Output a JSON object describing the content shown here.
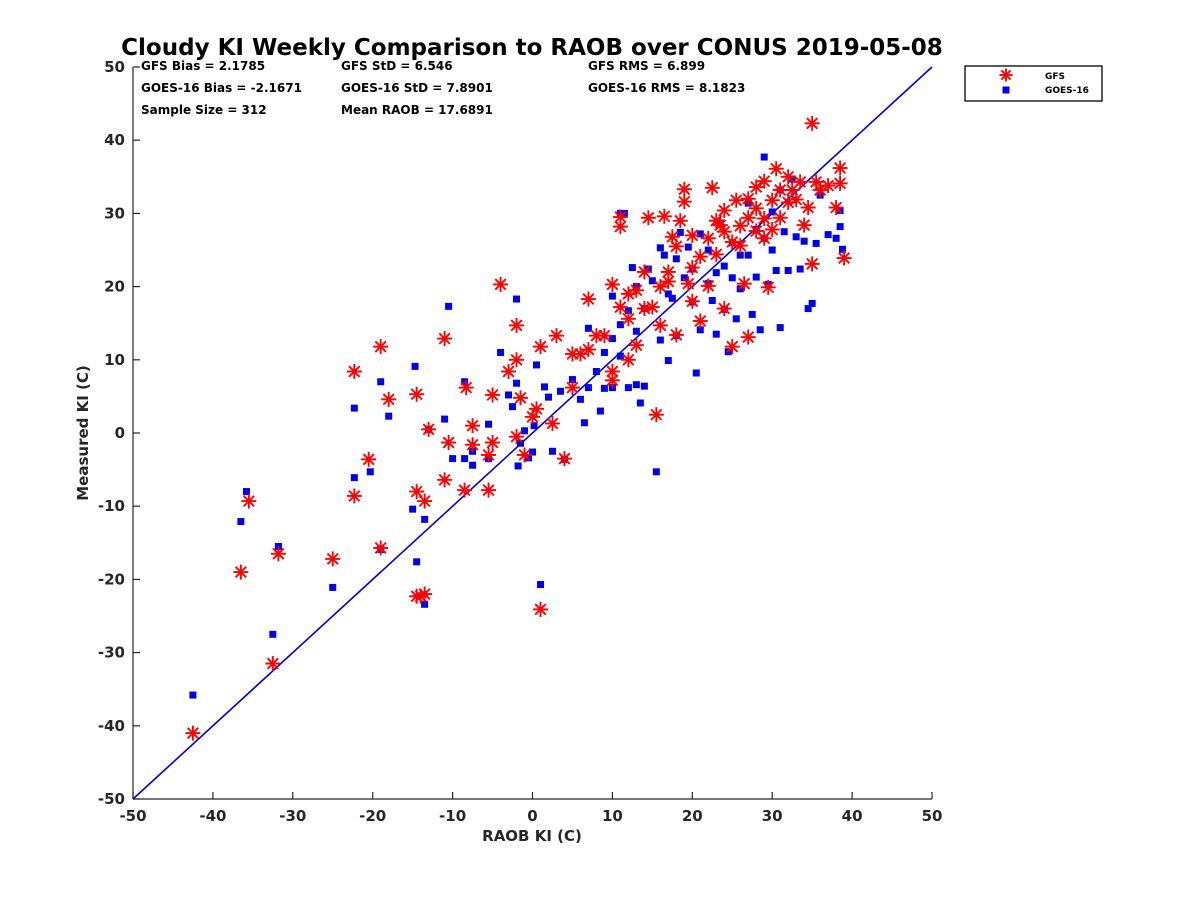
{
  "chart_data": {
    "type": "scatter",
    "title": "Cloudy KI Weekly Comparison to RAOB over CONUS 2019-05-08",
    "xlabel": "RAOB KI (C)",
    "ylabel": "Measured KI (C)",
    "xlim": [
      -50,
      50
    ],
    "ylim": [
      -50,
      50
    ],
    "x_ticks": [
      "-50",
      "-40",
      "-30",
      "-20",
      "-10",
      "0",
      "10",
      "20",
      "30",
      "40",
      "50"
    ],
    "y_ticks": [
      "-50",
      "-40",
      "-30",
      "-20",
      "-10",
      "0",
      "10",
      "20",
      "30",
      "40",
      "50"
    ],
    "x_tick_values": [
      -50,
      -40,
      -30,
      -20,
      -10,
      0,
      10,
      20,
      30,
      40,
      50
    ],
    "y_tick_values": [
      -50,
      -40,
      -30,
      -20,
      -10,
      0,
      10,
      20,
      30,
      40,
      50
    ],
    "grid": false,
    "legend_position": "top-right, outside plot area",
    "one_to_one_line": {
      "from": [
        -50,
        -50
      ],
      "to": [
        50,
        50
      ],
      "color": "#0000dd"
    },
    "stats": [
      [
        "GFS Bias = 2.1785",
        "GFS StD = 6.546",
        "GFS RMS = 6.899"
      ],
      [
        "GOES-16 Bias = -2.1671",
        "GOES-16 StD = 7.8901",
        "GOES-16 RMS = 8.1823"
      ],
      [
        "Sample Size = 312",
        "Mean RAOB = 17.6891",
        ""
      ]
    ],
    "series": [
      {
        "name": "GFS",
        "marker": "asterisk",
        "color": "#ff0000",
        "points": [
          [
            -42.5,
            -41
          ],
          [
            -36.5,
            -19
          ],
          [
            -35.5,
            -9.3
          ],
          [
            -31.8,
            -16.5
          ],
          [
            -32.5,
            -31.5
          ],
          [
            -25,
            -17.2
          ],
          [
            -22.3,
            8.4
          ],
          [
            -22.3,
            -8.6
          ],
          [
            -20.5,
            -3.6
          ],
          [
            -19,
            11.8
          ],
          [
            -19,
            -15.7
          ],
          [
            -18,
            4.6
          ],
          [
            -14.5,
            -8
          ],
          [
            -14.5,
            5.3
          ],
          [
            -14.5,
            -22.3
          ],
          [
            -14,
            -22.3
          ],
          [
            -13.5,
            -9.3
          ],
          [
            -13.5,
            -22
          ],
          [
            -13,
            0.5
          ],
          [
            -11,
            12.9
          ],
          [
            -11,
            -6.4
          ],
          [
            -10.5,
            -1.3
          ],
          [
            -8.5,
            -7.8
          ],
          [
            -8.3,
            6.2
          ],
          [
            -7.5,
            -1.6
          ],
          [
            -7.5,
            1
          ],
          [
            -5.5,
            -7.8
          ],
          [
            -5.5,
            -3
          ],
          [
            -5,
            -1.3
          ],
          [
            -5,
            5.2
          ],
          [
            -4,
            20.3
          ],
          [
            -3,
            8.4
          ],
          [
            -2,
            14.7
          ],
          [
            -2,
            10
          ],
          [
            -2,
            -0.5
          ],
          [
            -1.5,
            4.8
          ],
          [
            -1,
            -3
          ],
          [
            0,
            2.2
          ],
          [
            0.5,
            3.3
          ],
          [
            1,
            11.8
          ],
          [
            1,
            -24.1
          ],
          [
            2.5,
            1.3
          ],
          [
            3,
            13.3
          ],
          [
            4,
            -3.5
          ],
          [
            5,
            6.2
          ],
          [
            5,
            10.8
          ],
          [
            6,
            10.8
          ],
          [
            7,
            18.3
          ],
          [
            7,
            11.4
          ],
          [
            8,
            13.3
          ],
          [
            9,
            13.3
          ],
          [
            10,
            20.3
          ],
          [
            10,
            8.4
          ],
          [
            10,
            7.2
          ],
          [
            11,
            17.2
          ],
          [
            11,
            28.2
          ],
          [
            11,
            29.5
          ],
          [
            12,
            19
          ],
          [
            12,
            15.6
          ],
          [
            12,
            10
          ],
          [
            13,
            19.5
          ],
          [
            13,
            12
          ],
          [
            14,
            22
          ],
          [
            14,
            17
          ],
          [
            14.5,
            29.4
          ],
          [
            15,
            17.2
          ],
          [
            15.5,
            2.5
          ],
          [
            16,
            20
          ],
          [
            16,
            14.7
          ],
          [
            16.5,
            29.6
          ],
          [
            17,
            22
          ],
          [
            17,
            20.7
          ],
          [
            17.5,
            26.8
          ],
          [
            18,
            25.5
          ],
          [
            18,
            13.4
          ],
          [
            18.5,
            29
          ],
          [
            19,
            33.3
          ],
          [
            19,
            31.6
          ],
          [
            19.5,
            20.4
          ],
          [
            20,
            27
          ],
          [
            20,
            22.6
          ],
          [
            20,
            18
          ],
          [
            21,
            15.3
          ],
          [
            21,
            24.1
          ],
          [
            22,
            26.6
          ],
          [
            22,
            20.1
          ],
          [
            22.5,
            33.5
          ],
          [
            23,
            29
          ],
          [
            23,
            24.4
          ],
          [
            23.5,
            28.4
          ],
          [
            24,
            30.4
          ],
          [
            24,
            27.5
          ],
          [
            24,
            17
          ],
          [
            25,
            11.8
          ],
          [
            25,
            26.1
          ],
          [
            25.5,
            31.8
          ],
          [
            26,
            28.3
          ],
          [
            26,
            25.6
          ],
          [
            26.5,
            20.4
          ],
          [
            27,
            13.1
          ],
          [
            27,
            32
          ],
          [
            27,
            29.4
          ],
          [
            28,
            33.6
          ],
          [
            28,
            27.6
          ],
          [
            28,
            30.7
          ],
          [
            29,
            34.4
          ],
          [
            29,
            29.3
          ],
          [
            29,
            26.6
          ],
          [
            29.5,
            19.9
          ],
          [
            30,
            31.8
          ],
          [
            30,
            27.8
          ],
          [
            30.5,
            36.1
          ],
          [
            31,
            33.2
          ],
          [
            31,
            29.4
          ],
          [
            32,
            35
          ],
          [
            32,
            31.5
          ],
          [
            32.5,
            33.2
          ],
          [
            33,
            31.9
          ],
          [
            33.5,
            34.3
          ],
          [
            34,
            28.4
          ],
          [
            34.5,
            30.8
          ],
          [
            35,
            42.3
          ],
          [
            35,
            23.1
          ],
          [
            35.5,
            34.3
          ],
          [
            36,
            33.2
          ],
          [
            37,
            33.8
          ],
          [
            38,
            30.8
          ],
          [
            38.5,
            34.1
          ],
          [
            38.5,
            36.2
          ],
          [
            39,
            23.9
          ]
        ]
      },
      {
        "name": "GOES-16",
        "marker": "square",
        "color": "#0000ee",
        "points": [
          [
            -42.5,
            -35.8
          ],
          [
            -36.5,
            -12.1
          ],
          [
            -35.8,
            -8
          ],
          [
            -31.8,
            -15.5
          ],
          [
            -32.5,
            -27.5
          ],
          [
            -25,
            -21.1
          ],
          [
            -22.3,
            3.4
          ],
          [
            -22.3,
            -6.1
          ],
          [
            -20.3,
            -5.3
          ],
          [
            -19,
            7
          ],
          [
            -19,
            -15.9
          ],
          [
            -18,
            2.3
          ],
          [
            -14.7,
            9.1
          ],
          [
            -15,
            -10.4
          ],
          [
            -14.5,
            -17.6
          ],
          [
            -13.5,
            -23.4
          ],
          [
            -13.5,
            -11.8
          ],
          [
            -13,
            0.5
          ],
          [
            -11,
            1.9
          ],
          [
            -10.5,
            17.3
          ],
          [
            -10,
            -3.5
          ],
          [
            -8.5,
            -3.5
          ],
          [
            -8.5,
            7
          ],
          [
            -7.5,
            -4.4
          ],
          [
            -7.5,
            -2.5
          ],
          [
            -5.5,
            1.2
          ],
          [
            -5.5,
            -3.5
          ],
          [
            -4,
            11
          ],
          [
            -3,
            5.2
          ],
          [
            -2.5,
            3.6
          ],
          [
            -2,
            6.8
          ],
          [
            -2,
            18.3
          ],
          [
            -1.8,
            -4.5
          ],
          [
            -1.5,
            -1.4
          ],
          [
            -1,
            0.3
          ],
          [
            -0.5,
            -3.4
          ],
          [
            0,
            -2.6
          ],
          [
            0.2,
            1
          ],
          [
            0.5,
            9.3
          ],
          [
            1,
            -20.7
          ],
          [
            1.5,
            6.3
          ],
          [
            2,
            4.9
          ],
          [
            2.5,
            -2.5
          ],
          [
            3.5,
            5.7
          ],
          [
            4,
            -3.6
          ],
          [
            5,
            7.3
          ],
          [
            6,
            4.6
          ],
          [
            6.5,
            1.4
          ],
          [
            7,
            14.3
          ],
          [
            7,
            6.2
          ],
          [
            8,
            8.4
          ],
          [
            8.5,
            3
          ],
          [
            9,
            11
          ],
          [
            9,
            6.1
          ],
          [
            10,
            18.7
          ],
          [
            10,
            12.9
          ],
          [
            10,
            6.2
          ],
          [
            11,
            30
          ],
          [
            11,
            14.8
          ],
          [
            11,
            10.5
          ],
          [
            11.5,
            30
          ],
          [
            12,
            16.7
          ],
          [
            12,
            6.2
          ],
          [
            12.5,
            22.6
          ],
          [
            13,
            20
          ],
          [
            13,
            13.9
          ],
          [
            13,
            6.6
          ],
          [
            13.5,
            4.1
          ],
          [
            14,
            17
          ],
          [
            14,
            6.4
          ],
          [
            14.5,
            22.4
          ],
          [
            15,
            20.8
          ],
          [
            15.5,
            -5.3
          ],
          [
            16,
            25.3
          ],
          [
            16,
            12.7
          ],
          [
            16.5,
            24.3
          ],
          [
            17,
            19
          ],
          [
            17,
            9.9
          ],
          [
            17.5,
            18.4
          ],
          [
            18,
            23.8
          ],
          [
            18,
            13.3
          ],
          [
            18.5,
            27.4
          ],
          [
            19,
            21.2
          ],
          [
            19.5,
            25.4
          ],
          [
            20,
            22.4
          ],
          [
            20,
            17.9
          ],
          [
            20.5,
            8.2
          ],
          [
            21,
            27.2
          ],
          [
            21,
            14.1
          ],
          [
            22,
            25
          ],
          [
            22,
            20.4
          ],
          [
            22.5,
            18.1
          ],
          [
            23,
            21.9
          ],
          [
            23,
            13.5
          ],
          [
            23.5,
            28.7
          ],
          [
            24,
            22.8
          ],
          [
            24,
            16.9
          ],
          [
            24.5,
            11.1
          ],
          [
            25,
            26
          ],
          [
            25,
            21.2
          ],
          [
            25.5,
            15.6
          ],
          [
            26,
            24.3
          ],
          [
            26,
            19.7
          ],
          [
            27,
            31.4
          ],
          [
            27,
            24.3
          ],
          [
            27.5,
            16.2
          ],
          [
            28,
            27.8
          ],
          [
            28,
            21.3
          ],
          [
            28.5,
            14.1
          ],
          [
            29,
            37.7
          ],
          [
            29,
            26.6
          ],
          [
            29.5,
            20.3
          ],
          [
            30,
            30.2
          ],
          [
            30,
            25
          ],
          [
            30.5,
            22.2
          ],
          [
            31,
            14.4
          ],
          [
            31,
            33.2
          ],
          [
            31.5,
            27.5
          ],
          [
            32,
            22.2
          ],
          [
            32.5,
            34.7
          ],
          [
            33,
            26.8
          ],
          [
            33.5,
            22.4
          ],
          [
            34,
            26.2
          ],
          [
            34.5,
            17
          ],
          [
            35,
            17.7
          ],
          [
            35.5,
            25.9
          ],
          [
            36,
            32.5
          ],
          [
            37,
            27.1
          ],
          [
            38,
            26.6
          ],
          [
            38.5,
            30.4
          ],
          [
            38.5,
            28.2
          ],
          [
            38.8,
            25.1
          ]
        ]
      }
    ]
  }
}
